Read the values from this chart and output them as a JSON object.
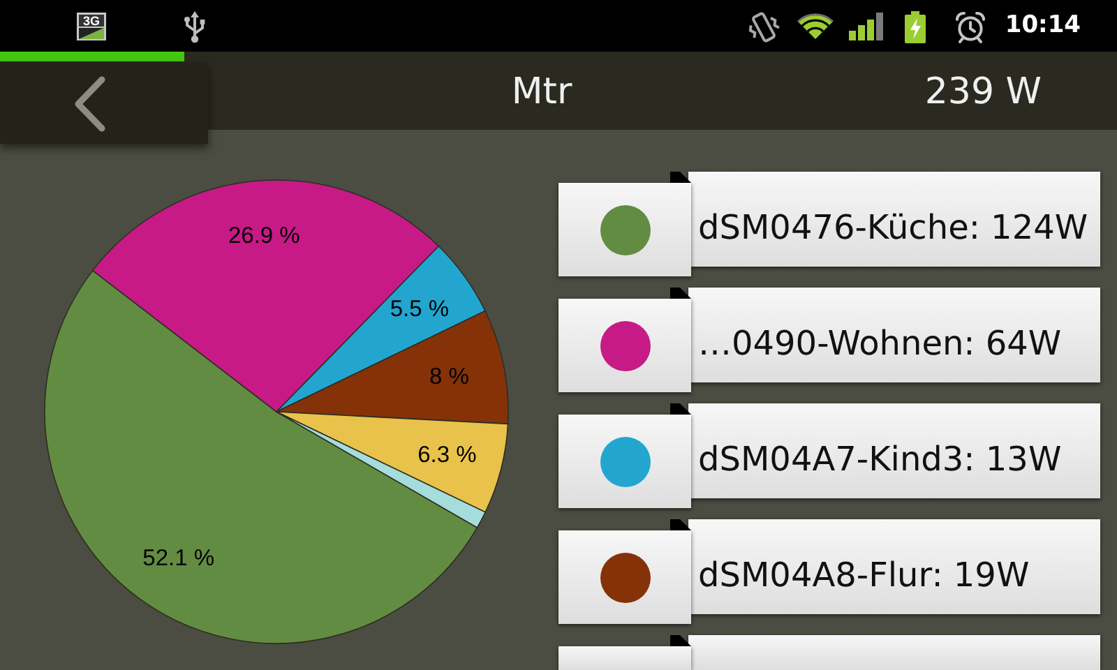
{
  "chart_data": {
    "type": "pie",
    "title": "Mtr",
    "categories": [
      "dSM0476-Küche: 124W",
      "…0490-Wohnen: 64W",
      "dSM04A7-Kind3: 13W",
      "dSM04A8-Flur: 19W",
      null,
      null
    ],
    "values": [
      52.1,
      26.9,
      5.5,
      8,
      6.3,
      1.2
    ],
    "colors": [
      "#628c42",
      "#c71a87",
      "#22a6cf",
      "#853208",
      "#e8c24a",
      "#a5dcdc"
    ],
    "value_labels": [
      "52.1 %",
      "26.9 %",
      "5.5 %",
      "8 %",
      "6.3 %",
      null
    ],
    "legend": "right",
    "annotations": [
      "239 W",
      "10:14",
      "3G"
    ]
  }
}
